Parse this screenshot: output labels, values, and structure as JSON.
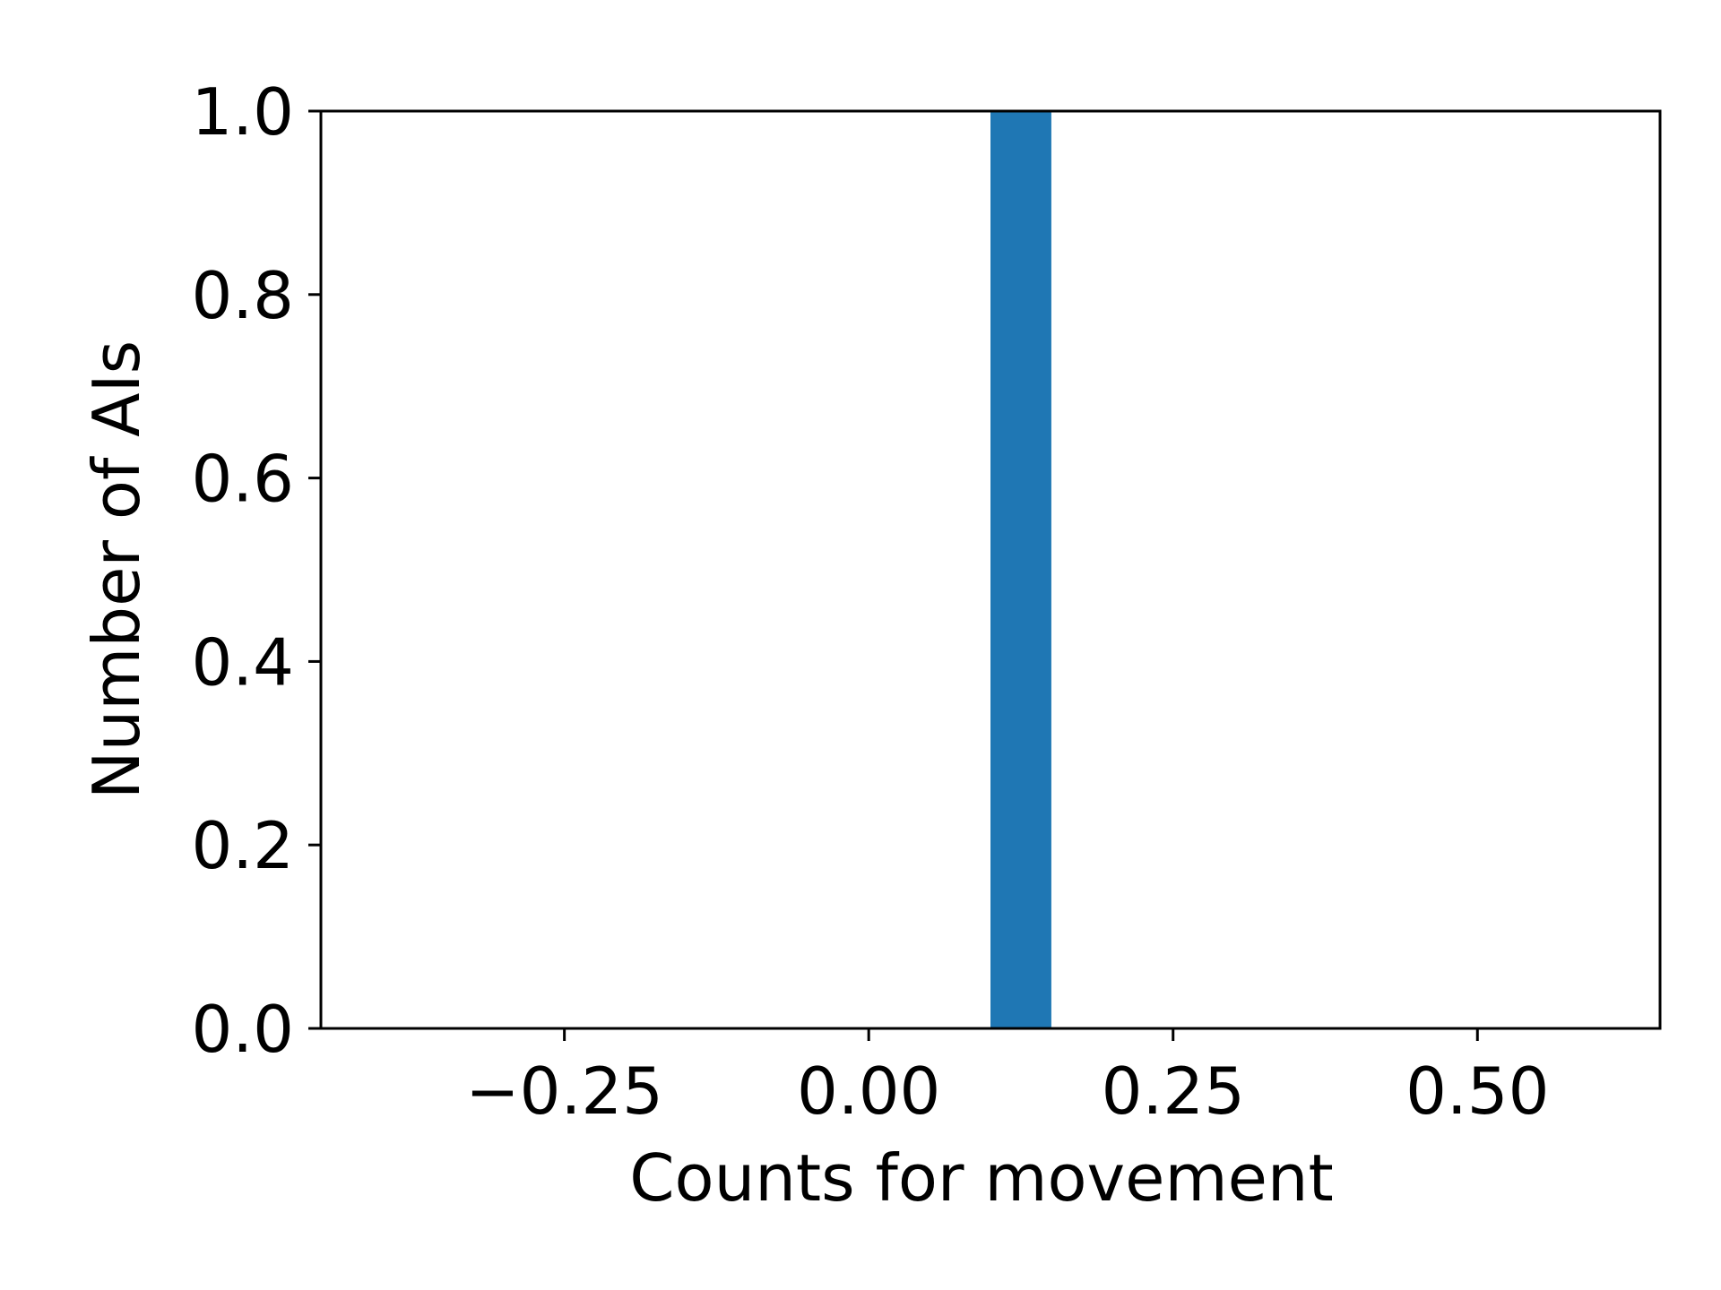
{
  "chart_data": {
    "type": "bar",
    "title": "",
    "xlabel": "Counts for movement",
    "ylabel": "Number of AIs",
    "xlim": [
      -0.45,
      0.65
    ],
    "ylim": [
      0.0,
      1.0
    ],
    "grid": false,
    "legend": "none",
    "x_ticks": [
      {
        "value": -0.25,
        "label": "−0.25"
      },
      {
        "value": 0.0,
        "label": "0.00"
      },
      {
        "value": 0.25,
        "label": "0.25"
      },
      {
        "value": 0.5,
        "label": "0.50"
      }
    ],
    "y_ticks": [
      {
        "value": 0.0,
        "label": "0.0"
      },
      {
        "value": 0.2,
        "label": "0.2"
      },
      {
        "value": 0.4,
        "label": "0.4"
      },
      {
        "value": 0.6,
        "label": "0.6"
      },
      {
        "value": 0.8,
        "label": "0.8"
      },
      {
        "value": 1.0,
        "label": "1.0"
      }
    ],
    "bars": [
      {
        "x_start": 0.1,
        "x_end": 0.15,
        "value": 1.0
      }
    ],
    "colors": {
      "bar": "#1f77b4",
      "axes": "#000000",
      "background": "#ffffff"
    }
  }
}
